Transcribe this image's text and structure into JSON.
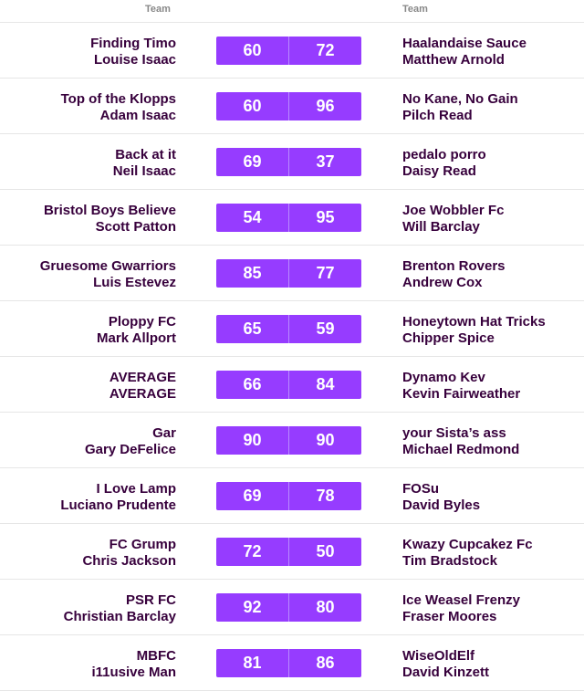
{
  "header": {
    "home_label": "Team",
    "away_label": "Team"
  },
  "colors": {
    "score_bg": "#963cff",
    "text": "#37003c",
    "divider": "#e6e6e6"
  },
  "fixtures": [
    {
      "home_team": "Finding Timo",
      "home_manager": "Louise Isaac",
      "home_score": "60",
      "away_score": "72",
      "away_team": "Haalandaise Sauce",
      "away_manager": "Matthew Arnold"
    },
    {
      "home_team": "Top of the Klopps",
      "home_manager": "Adam Isaac",
      "home_score": "60",
      "away_score": "96",
      "away_team": "No Kane, No Gain",
      "away_manager": "Pilch Read"
    },
    {
      "home_team": "Back at it",
      "home_manager": "Neil Isaac",
      "home_score": "69",
      "away_score": "37",
      "away_team": "pedalo porro",
      "away_manager": "Daisy Read"
    },
    {
      "home_team": "Bristol Boys Believe",
      "home_manager": "Scott Patton",
      "home_score": "54",
      "away_score": "95",
      "away_team": "Joe Wobbler Fc",
      "away_manager": "Will Barclay"
    },
    {
      "home_team": "Gruesome Gwarriors",
      "home_manager": "Luis Estevez",
      "home_score": "85",
      "away_score": "77",
      "away_team": "Brenton Rovers",
      "away_manager": "Andrew Cox"
    },
    {
      "home_team": "Ploppy FC",
      "home_manager": "Mark Allport",
      "home_score": "65",
      "away_score": "59",
      "away_team": "Honeytown Hat Tricks",
      "away_manager": "Chipper Spice"
    },
    {
      "home_team": "AVERAGE",
      "home_manager": "AVERAGE",
      "home_score": "66",
      "away_score": "84",
      "away_team": "Dynamo Kev",
      "away_manager": "Kevin Fairweather"
    },
    {
      "home_team": "Gar",
      "home_manager": "Gary DeFelice",
      "home_score": "90",
      "away_score": "90",
      "away_team": "your Sista’s ass",
      "away_manager": "Michael Redmond"
    },
    {
      "home_team": "I Love Lamp",
      "home_manager": "Luciano Prudente",
      "home_score": "69",
      "away_score": "78",
      "away_team": "FOSu",
      "away_manager": "David Byles"
    },
    {
      "home_team": "FC Grump",
      "home_manager": "Chris Jackson",
      "home_score": "72",
      "away_score": "50",
      "away_team": "Kwazy Cupcakez Fc",
      "away_manager": "Tim Bradstock"
    },
    {
      "home_team": "PSR FC",
      "home_manager": "Christian Barclay",
      "home_score": "92",
      "away_score": "80",
      "away_team": "Ice Weasel Frenzy",
      "away_manager": "Fraser Moores"
    },
    {
      "home_team": "MBFC",
      "home_manager": "i11usive Man",
      "home_score": "81",
      "away_score": "86",
      "away_team": "WiseOldElf",
      "away_manager": "David Kinzett"
    }
  ]
}
